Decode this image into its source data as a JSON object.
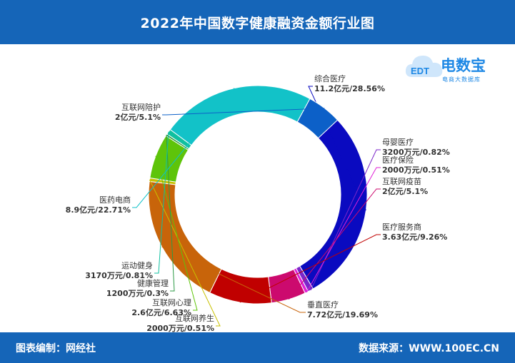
{
  "header": {
    "title": "2022年中国数字健康融资金额行业图"
  },
  "footer": {
    "left": "图表编制：网经社",
    "right": "数据来源：WWW.100EC.CN"
  },
  "logo": {
    "brand": "电数宝",
    "sub": "电商大数据库",
    "mark": "EDT"
  },
  "chart_data": {
    "type": "pie",
    "donut": true,
    "title": "2022年中国数字健康融资金额行业图",
    "slices": [
      {
        "name": "综合医疗",
        "value_text": "11.2亿元/28.56%",
        "value": 11.2,
        "percent": 28.56,
        "color": "#0a0ac0"
      },
      {
        "name": "母婴医疗",
        "value_text": "3200万元/0.82%",
        "value": 0.32,
        "percent": 0.82,
        "color": "#7b26c9"
      },
      {
        "name": "医疗保险",
        "value_text": "2000万元/0.51%",
        "value": 0.2,
        "percent": 0.51,
        "color": "#e020d6"
      },
      {
        "name": "互联网疫苗",
        "value_text": "2亿元/5.1%",
        "value": 2,
        "percent": 5.1,
        "color": "#cc0a6e"
      },
      {
        "name": "医疗服务商",
        "value_text": "3.63亿元/9.26%",
        "value": 3.63,
        "percent": 9.26,
        "color": "#c00000"
      },
      {
        "name": "垂直医疗",
        "value_text": "7.72亿元/19.69%",
        "value": 7.72,
        "percent": 19.69,
        "color": "#c8640a"
      },
      {
        "name": "互联网养生",
        "value_text": "2000万元/0.51%",
        "value": 0.2,
        "percent": 0.51,
        "color": "#c8c000"
      },
      {
        "name": "互联网心理",
        "value_text": "2.6亿元/6.63%",
        "value": 2.6,
        "percent": 6.63,
        "color": "#5ec40a"
      },
      {
        "name": "健康管理",
        "value_text": "1200万元/0.3%",
        "value": 0.12,
        "percent": 0.3,
        "color": "#2e9a46"
      },
      {
        "name": "运动健身",
        "value_text": "3170万元/0.81%",
        "value": 0.317,
        "percent": 0.81,
        "color": "#10c0a0"
      },
      {
        "name": "医药电商",
        "value_text": "8.9亿元/22.71%",
        "value": 8.9,
        "percent": 22.71,
        "color": "#12c2c8"
      },
      {
        "name": "互联网陪护",
        "value_text": "2亿元/5.1%",
        "value": 2,
        "percent": 5.1,
        "color": "#0c60c8"
      }
    ]
  }
}
